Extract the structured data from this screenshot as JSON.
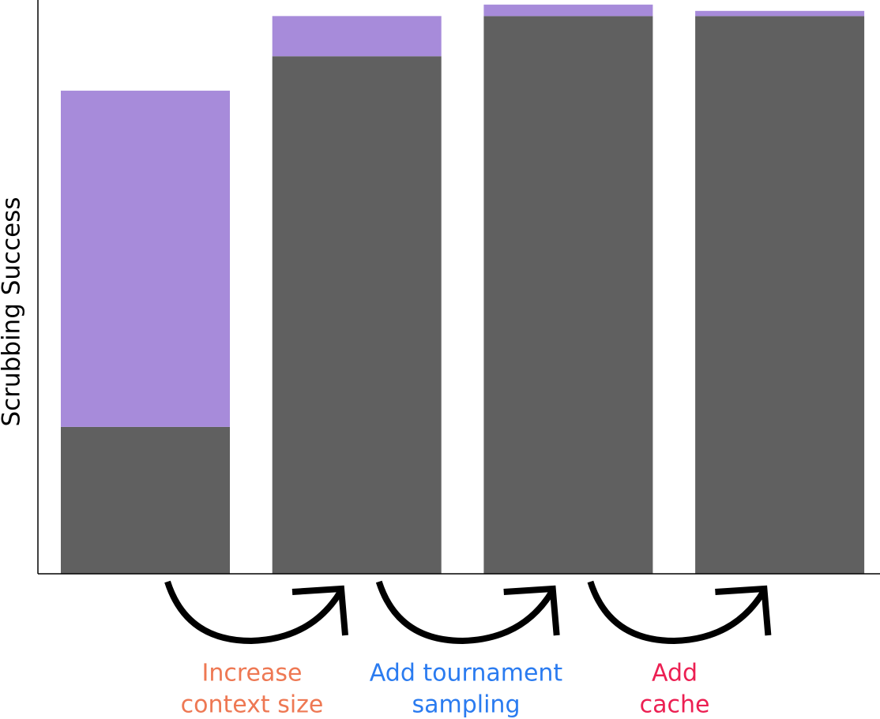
{
  "chart_data": {
    "type": "stacked_bar",
    "y_label": "Scrubbing Success",
    "categories": [
      null,
      null,
      null,
      null
    ],
    "series": [
      {
        "color": "#606060",
        "values": [
          0.256,
          0.902,
          0.972,
          0.972
        ]
      },
      {
        "color": "#a78bda",
        "values": [
          0.586,
          0.07,
          0.02,
          0.009
        ]
      }
    ],
    "ylim": [
      0,
      1
    ],
    "annotations": [
      {
        "lines": [
          "Increase",
          "context size"
        ],
        "color": "#ee7853"
      },
      {
        "lines": [
          "Add tournament",
          "sampling"
        ],
        "color": "#2a7bf0"
      },
      {
        "lines": [
          "Add",
          "cache"
        ],
        "color": "#ec1f52"
      }
    ]
  }
}
